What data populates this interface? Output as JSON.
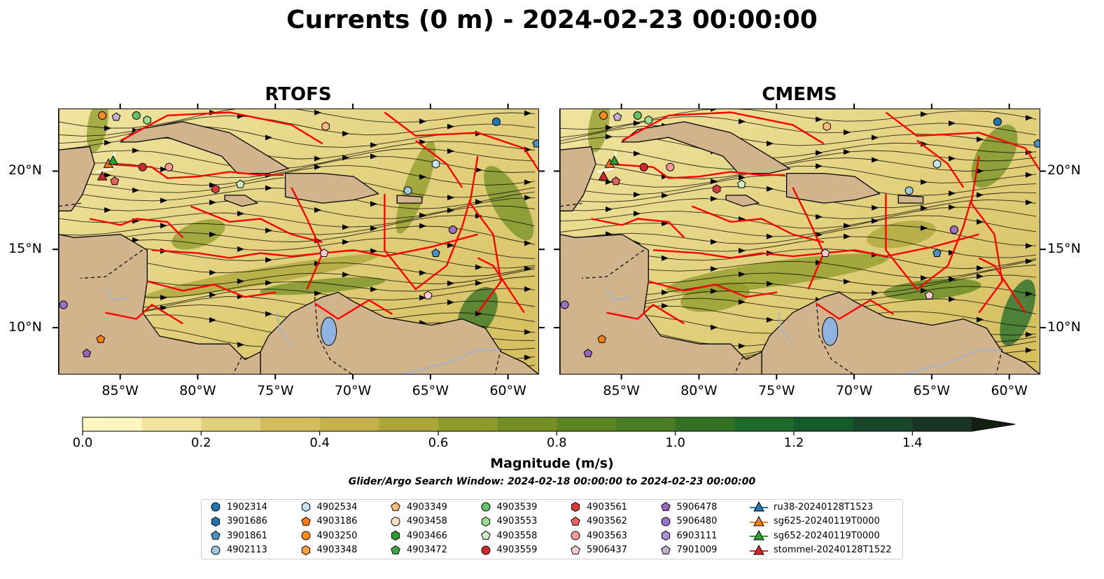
{
  "title": "Currents (0 m) - 2024-02-23 00:00:00",
  "panels": [
    {
      "title": "RTOFS"
    },
    {
      "title": "CMEMS"
    }
  ],
  "map": {
    "extent": {
      "lon": [
        -89,
        -58
      ],
      "lat": [
        7,
        24
      ]
    },
    "lon_ticks": [
      "85°W",
      "80°W",
      "75°W",
      "70°W",
      "65°W",
      "60°W"
    ],
    "lat_ticks": [
      "20°N",
      "15°N",
      "10°N"
    ],
    "colors": {
      "land": "#d2b48c",
      "lake": "#8fb4e3",
      "ocean_low": "#fdf6c0",
      "ocean_high": "#1c2a1a",
      "eez": "#ff0000",
      "border": "#000000",
      "river": "#9ab3d5",
      "glider_path": "#ffffff"
    }
  },
  "colorbar": {
    "label": "Magnitude (m/s)",
    "ticks": [
      "0.0",
      "0.2",
      "0.4",
      "0.6",
      "0.8",
      "1.0",
      "1.2",
      "1.4"
    ],
    "range": [
      0,
      1.5
    ],
    "extend": "max",
    "colors": [
      "#fdf6c0",
      "#f0e49e",
      "#e2d07c",
      "#d4bd5c",
      "#c5b14a",
      "#aaa63a",
      "#8e9b2a",
      "#749025",
      "#5d8522",
      "#4a7c22",
      "#337224",
      "#1f6a2a",
      "#155a2b",
      "#18472a",
      "#1b3524"
    ]
  },
  "window_text": "Glider/Argo Search Window: 2024-02-18 00:00:00 to 2024-02-23 00:00:00",
  "legend": [
    {
      "label": "1902314",
      "marker": "circle",
      "color": "#1f77b4"
    },
    {
      "label": "3901686",
      "marker": "hexagon",
      "color": "#1f77b4"
    },
    {
      "label": "3901861",
      "marker": "pentagon",
      "color": "#4a90c8"
    },
    {
      "label": "4902113",
      "marker": "circle",
      "color": "#9ecae1"
    },
    {
      "label": "4902534",
      "marker": "hexagon",
      "color": "#c6e2f5"
    },
    {
      "label": "4903186",
      "marker": "pentagon",
      "color": "#ff7f0e"
    },
    {
      "label": "4903250",
      "marker": "circle",
      "color": "#ff8c1a"
    },
    {
      "label": "4903348",
      "marker": "hexagon",
      "color": "#ffa040"
    },
    {
      "label": "4903349",
      "marker": "pentagon",
      "color": "#ffbb78"
    },
    {
      "label": "4903458",
      "marker": "circle",
      "color": "#ffe0c2"
    },
    {
      "label": "4903466",
      "marker": "hexagon",
      "color": "#2ca02c"
    },
    {
      "label": "4903472",
      "marker": "pentagon",
      "color": "#3aa83a"
    },
    {
      "label": "4903539",
      "marker": "circle",
      "color": "#66c266"
    },
    {
      "label": "4903553",
      "marker": "hexagon",
      "color": "#98df8a"
    },
    {
      "label": "4903558",
      "marker": "pentagon",
      "color": "#ccf5c4"
    },
    {
      "label": "4903559",
      "marker": "circle",
      "color": "#d62728"
    },
    {
      "label": "4903561",
      "marker": "hexagon",
      "color": "#d83a3a"
    },
    {
      "label": "4903562",
      "marker": "pentagon",
      "color": "#e86060"
    },
    {
      "label": "4903563",
      "marker": "circle",
      "color": "#ff9896"
    },
    {
      "label": "5906437",
      "marker": "pentagon",
      "color": "#ffd0cf"
    },
    {
      "label": "5906478",
      "marker": "pentagon",
      "color": "#9467bd"
    },
    {
      "label": "5906480",
      "marker": "circle",
      "color": "#9b72c4"
    },
    {
      "label": "6903111",
      "marker": "hexagon",
      "color": "#b08ed4"
    },
    {
      "label": "7901009",
      "marker": "pentagon",
      "color": "#c5b0d5"
    },
    {
      "label": "ru38-20240128T1523",
      "marker": "triangle-line",
      "color": "#1f77b4"
    },
    {
      "label": "sg625-20240119T0000",
      "marker": "triangle-line",
      "color": "#ff7f0e"
    },
    {
      "label": "sg652-20240119T0000",
      "marker": "triangle-line",
      "color": "#2ca02c"
    },
    {
      "label": "stommel-20240128T1522",
      "marker": "triangle-line",
      "color": "#d62728"
    }
  ]
}
